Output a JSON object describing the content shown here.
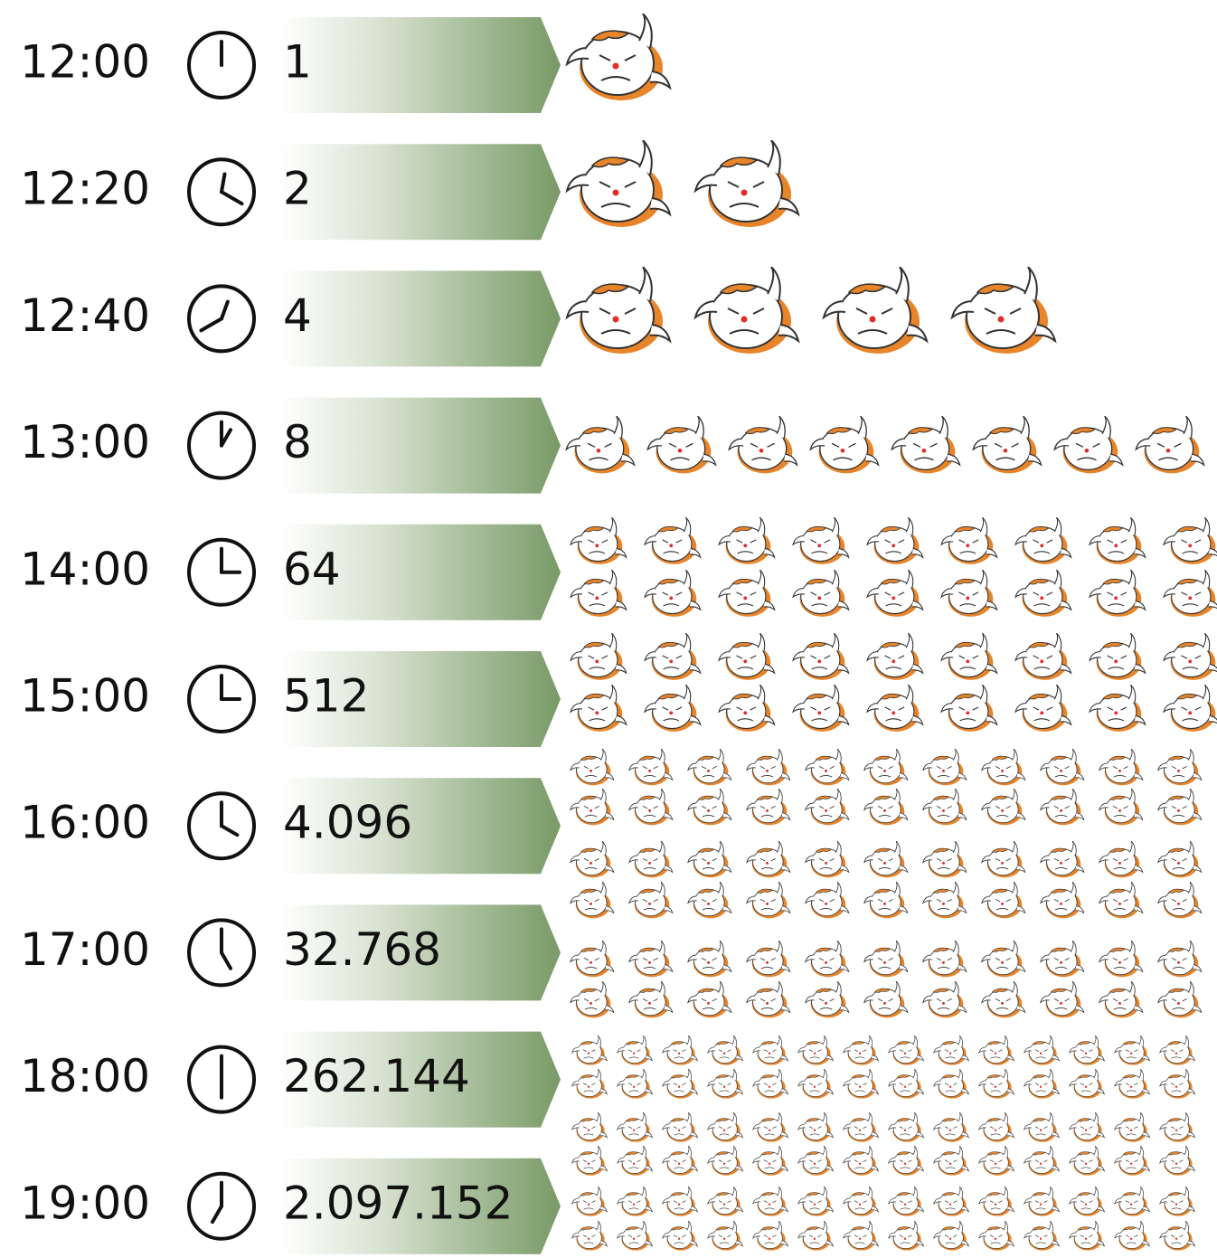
{
  "rows": [
    {
      "time": "12:00",
      "count": "1"
    },
    {
      "time": "12:20",
      "count": "2"
    },
    {
      "time": "12:40",
      "count": "4"
    },
    {
      "time": "13:00",
      "count": "8"
    },
    {
      "time": "14:00",
      "count": "64"
    },
    {
      "time": "15:00",
      "count": "512"
    },
    {
      "time": "16:00",
      "count": "4.096"
    },
    {
      "time": "17:00",
      "count": "32.768"
    },
    {
      "time": "18:00",
      "count": "262.144"
    },
    {
      "time": "19:00",
      "count": "2.097.152"
    }
  ]
}
